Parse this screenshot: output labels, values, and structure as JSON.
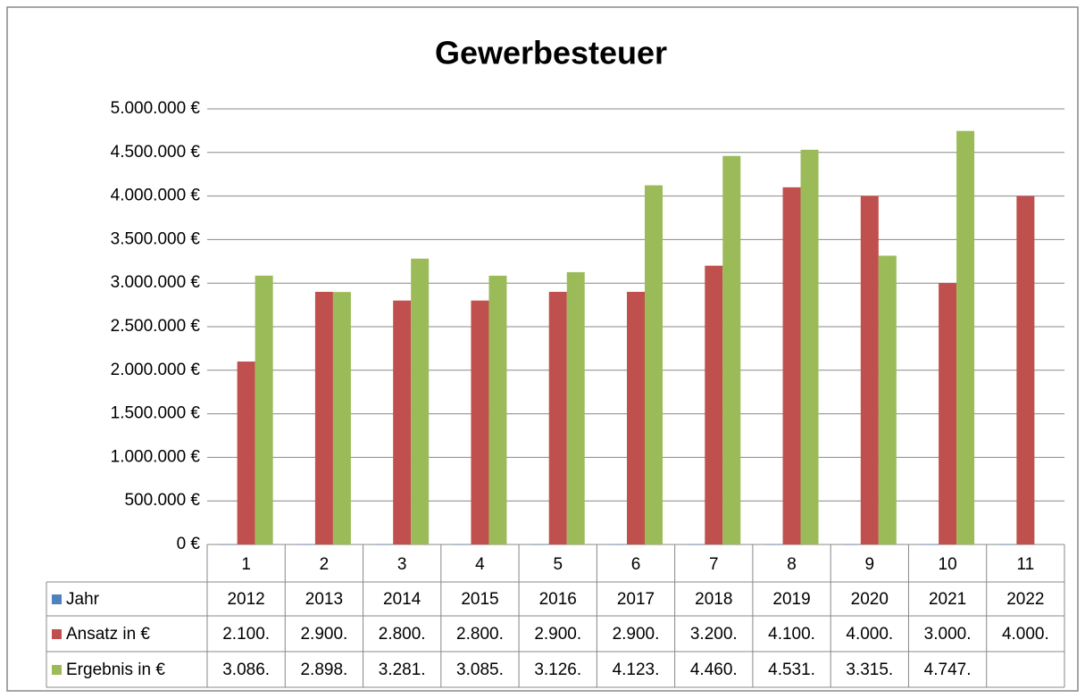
{
  "chart_data": {
    "type": "bar",
    "title": "Gewerbesteuer",
    "categories": [
      "1",
      "2",
      "3",
      "4",
      "5",
      "6",
      "7",
      "8",
      "9",
      "10",
      "11"
    ],
    "series": [
      {
        "name": "Jahr",
        "color": "#4f81bd",
        "values": [
          2012,
          2013,
          2014,
          2015,
          2016,
          2017,
          2018,
          2019,
          2020,
          2021,
          2022
        ]
      },
      {
        "name": "Ansatz in €",
        "color": "#c0504d",
        "values": [
          2100000,
          2900000,
          2800000,
          2800000,
          2900000,
          2900000,
          3200000,
          4100000,
          4000000,
          3000000,
          4000000
        ],
        "value_labels": [
          "2.100.",
          "2.900.",
          "2.800.",
          "2.800.",
          "2.900.",
          "2.900.",
          "3.200.",
          "4.100.",
          "4.000.",
          "3.000.",
          "4.000."
        ]
      },
      {
        "name": "Ergebnis in €",
        "color": "#9bbb59",
        "values": [
          3086000,
          2898000,
          3281000,
          3085000,
          3126000,
          4123000,
          4460000,
          4531000,
          3315000,
          4747000,
          null
        ],
        "value_labels": [
          "3.086.",
          "2.898.",
          "3.281.",
          "3.085.",
          "3.126.",
          "4.123.",
          "4.460.",
          "4.531.",
          "3.315.",
          "4.747.",
          null
        ]
      }
    ],
    "ylim": [
      0,
      5000000
    ],
    "yticks": [
      {
        "value": 0,
        "label": "0 €"
      },
      {
        "value": 500000,
        "label": "500.000 €"
      },
      {
        "value": 1000000,
        "label": "1.000.000 €"
      },
      {
        "value": 1500000,
        "label": "1.500.000 €"
      },
      {
        "value": 2000000,
        "label": "2.000.000 €"
      },
      {
        "value": 2500000,
        "label": "2.500.000 €"
      },
      {
        "value": 3000000,
        "label": "3.000.000 €"
      },
      {
        "value": 3500000,
        "label": "3.500.000 €"
      },
      {
        "value": 4000000,
        "label": "4.000.000 €"
      },
      {
        "value": 4500000,
        "label": "4.500.000 €"
      },
      {
        "value": 5000000,
        "label": "5.000.000 €"
      }
    ],
    "grid": true
  }
}
